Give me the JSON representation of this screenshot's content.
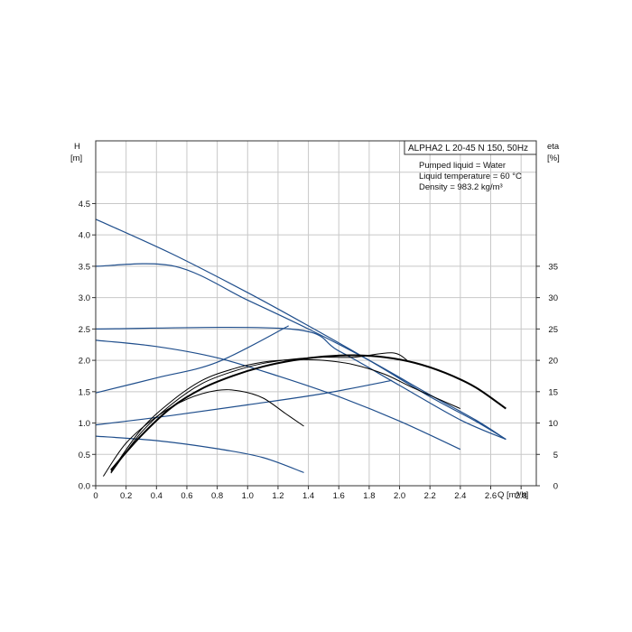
{
  "chart_data": {
    "type": "line",
    "title": "ALPHA2 L 20-45 N 150, 50Hz",
    "info": [
      "Pumped liquid = Water",
      "Liquid temperature = 60 °C",
      "Density = 983.2 kg/m³"
    ],
    "xlabel": "Q [m³/h]",
    "ylabel_left": [
      "H",
      "[m]"
    ],
    "ylabel_right": [
      "eta",
      "[%]"
    ],
    "xlim": [
      0,
      2.9
    ],
    "ylim_left": [
      0,
      5.5
    ],
    "ylim_right": [
      0,
      55
    ],
    "x_ticks": [
      "0",
      "0.2",
      "0.4",
      "0.6",
      "0.8",
      "1.0",
      "1.2",
      "1.4",
      "1.6",
      "1.8",
      "2.0",
      "2.2",
      "2.4",
      "2.6",
      "2.8"
    ],
    "y_ticks_left": [
      "0.0",
      "0.5",
      "1.0",
      "1.5",
      "2.0",
      "2.5",
      "3.0",
      "3.5",
      "4.0",
      "4.5"
    ],
    "y_ticks_right": [
      "0",
      "5",
      "10",
      "15",
      "20",
      "25",
      "30",
      "35"
    ],
    "grid": true,
    "colors": {
      "head": "#1f4e8c",
      "efficiency": "#000000",
      "grid": "#c8c8c8"
    },
    "head_series": [
      {
        "style": "blue",
        "points": [
          [
            0,
            4.25
          ],
          [
            0.5,
            3.7
          ],
          [
            1.0,
            3.08
          ],
          [
            1.4,
            2.55
          ],
          [
            1.8,
            2.0
          ],
          [
            2.2,
            1.42
          ],
          [
            2.5,
            1.03
          ],
          [
            2.7,
            0.74
          ]
        ]
      },
      {
        "style": "blue",
        "points": [
          [
            0,
            3.5
          ],
          [
            0.52,
            3.5
          ],
          [
            1.0,
            2.96
          ],
          [
            1.4,
            2.5
          ],
          [
            1.8,
            2.0
          ],
          [
            2.2,
            1.45
          ],
          [
            2.5,
            1.05
          ],
          [
            2.7,
            0.74
          ]
        ]
      },
      {
        "style": "blue",
        "points": [
          [
            0,
            2.5
          ],
          [
            1.28,
            2.5
          ],
          [
            1.6,
            2.15
          ],
          [
            2.0,
            1.6
          ],
          [
            2.4,
            1.05
          ],
          [
            2.7,
            0.74
          ]
        ]
      },
      {
        "style": "blue",
        "points": [
          [
            0,
            1.48
          ],
          [
            0.4,
            1.72
          ],
          [
            0.8,
            1.97
          ],
          [
            1.27,
            2.55
          ]
        ]
      },
      {
        "style": "blue",
        "points": [
          [
            0,
            0.97
          ],
          [
            0.5,
            1.12
          ],
          [
            1.0,
            1.29
          ],
          [
            1.5,
            1.47
          ],
          [
            1.95,
            1.68
          ]
        ]
      },
      {
        "style": "blue",
        "points": [
          [
            0,
            2.32
          ],
          [
            0.4,
            2.22
          ],
          [
            0.8,
            2.04
          ],
          [
            1.2,
            1.75
          ],
          [
            1.6,
            1.42
          ],
          [
            2.0,
            1.03
          ],
          [
            2.4,
            0.58
          ]
        ]
      },
      {
        "style": "blue",
        "points": [
          [
            0,
            0.79
          ],
          [
            0.4,
            0.72
          ],
          [
            0.8,
            0.59
          ],
          [
            1.1,
            0.45
          ],
          [
            1.37,
            0.21
          ]
        ]
      }
    ],
    "efficiency_series": [
      {
        "style": "bold",
        "points": [
          [
            0.1,
            2.5
          ],
          [
            0.3,
            8
          ],
          [
            0.5,
            12.5
          ],
          [
            0.7,
            15.5
          ],
          [
            0.9,
            17.5
          ],
          [
            1.1,
            19
          ],
          [
            1.3,
            20
          ],
          [
            1.5,
            20.6
          ],
          [
            1.7,
            20.8
          ],
          [
            1.9,
            20.5
          ],
          [
            2.1,
            19.6
          ],
          [
            2.3,
            18
          ],
          [
            2.5,
            15.7
          ],
          [
            2.7,
            12.3
          ]
        ]
      },
      {
        "style": "thin",
        "points": [
          [
            0.1,
            2
          ],
          [
            0.3,
            8.5
          ],
          [
            0.5,
            13
          ],
          [
            0.7,
            16.3
          ],
          [
            0.9,
            18.2
          ],
          [
            1.1,
            19.5
          ],
          [
            1.3,
            20.2
          ],
          [
            1.5,
            20.5
          ],
          [
            1.7,
            20.5
          ],
          [
            1.95,
            21.2
          ],
          [
            2.05,
            20
          ]
        ]
      },
      {
        "style": "thin",
        "points": [
          [
            0.1,
            2.2
          ],
          [
            0.3,
            9
          ],
          [
            0.5,
            13.5
          ],
          [
            0.7,
            16.8
          ],
          [
            0.9,
            18.6
          ],
          [
            1.1,
            19.7
          ],
          [
            1.3,
            20.1
          ],
          [
            1.5,
            20
          ],
          [
            1.7,
            19.3
          ],
          [
            1.9,
            17.8
          ],
          [
            2.1,
            15.5
          ],
          [
            2.4,
            12.3
          ]
        ]
      },
      {
        "style": "thin",
        "points": [
          [
            0.05,
            1.5
          ],
          [
            0.2,
            6.8
          ],
          [
            0.4,
            11
          ],
          [
            0.6,
            13.8
          ],
          [
            0.8,
            15.2
          ],
          [
            0.95,
            15.1
          ],
          [
            1.1,
            14
          ],
          [
            1.25,
            11.5
          ],
          [
            1.37,
            9.5
          ]
        ]
      }
    ]
  }
}
